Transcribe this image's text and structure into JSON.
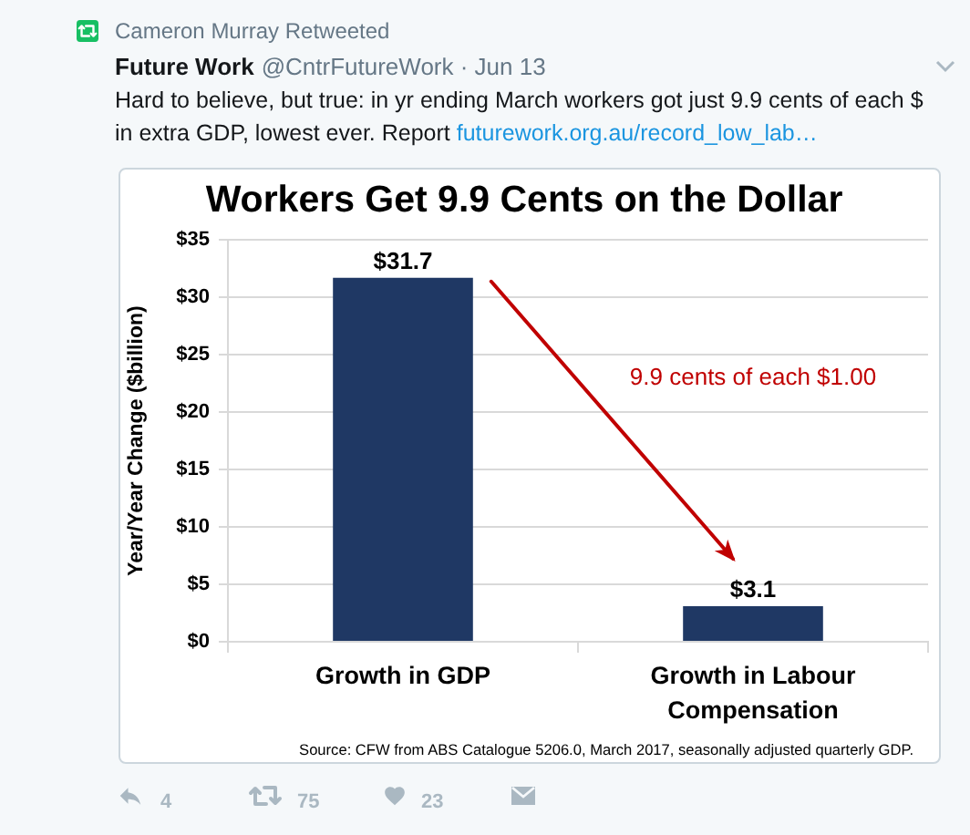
{
  "chart_data": {
    "type": "bar",
    "title": "Workers Get 9.9 Cents on the Dollar",
    "ylabel": "Year/Year Change ($billion)",
    "categories": [
      "Growth in GDP",
      "Growth in Labour Compensation"
    ],
    "values": [
      31.7,
      3.1
    ],
    "color": "#1f3864",
    "value_labels": [
      "$31.7",
      "$3.1"
    ],
    "ylim": [
      0,
      35
    ],
    "yticks": [
      {
        "value": 0,
        "label": "$0"
      },
      {
        "value": 5,
        "label": "$5"
      },
      {
        "value": 10,
        "label": "$10"
      },
      {
        "value": 15,
        "label": "$15"
      },
      {
        "value": 20,
        "label": "$20"
      },
      {
        "value": 25,
        "label": "$25"
      },
      {
        "value": 30,
        "label": "$30"
      },
      {
        "value": 35,
        "label": "$35"
      }
    ],
    "grid": "y",
    "annotations": [
      "Cameron Murray Retweeted",
      "Future Work",
      "@CntrFutureWork · Jun 13",
      "Hard to believe, but true: in yr ending March workers got just 9.9 cents of each $ in extra GDP, lowest ever. Report futurework.org.au/record_low_lab…",
      "9.9 cents of each $1.00",
      "Source: CFW from ABS Catalogue 5206.0, March 2017, seasonally adjusted quarterly GDP.",
      "4",
      "75",
      "23"
    ]
  }
}
